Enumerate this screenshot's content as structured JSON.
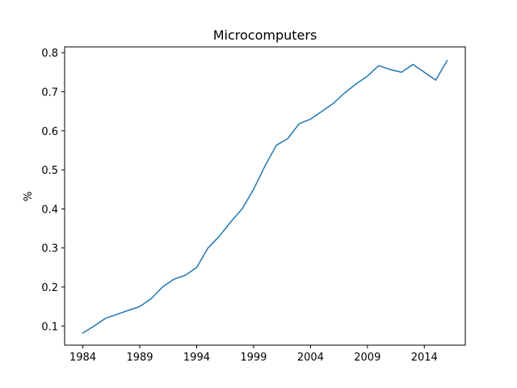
{
  "chart_data": {
    "type": "line",
    "title": "Microcomputers",
    "xlabel": "",
    "ylabel": "%",
    "xlim": [
      1982.4,
      2017.6
    ],
    "ylim": [
      0.051,
      0.815
    ],
    "x_ticks": [
      1984,
      1989,
      1994,
      1999,
      2004,
      2009,
      2014
    ],
    "y_ticks": [
      0.1,
      0.2,
      0.3,
      0.4,
      0.5,
      0.6,
      0.7,
      0.8
    ],
    "grid": false,
    "series": [
      {
        "color": "#1f77b4",
        "x": [
          1984,
          1985,
          1986,
          1987,
          1988,
          1989,
          1990,
          1991,
          1992,
          1993,
          1994,
          1995,
          1996,
          1997,
          1998,
          1999,
          2000,
          2001,
          2002,
          2003,
          2004,
          2005,
          2006,
          2007,
          2008,
          2009,
          2010,
          2011,
          2012,
          2013,
          2014,
          2015,
          2016
        ],
        "y": [
          0.082,
          0.1,
          0.12,
          0.13,
          0.14,
          0.15,
          0.17,
          0.2,
          0.22,
          0.23,
          0.25,
          0.3,
          0.33,
          0.367,
          0.4,
          0.45,
          0.51,
          0.563,
          0.58,
          0.618,
          0.63,
          0.65,
          0.67,
          0.697,
          0.72,
          0.74,
          0.767,
          0.757,
          0.75,
          0.77,
          0.75,
          0.73,
          0.78
        ]
      }
    ]
  }
}
